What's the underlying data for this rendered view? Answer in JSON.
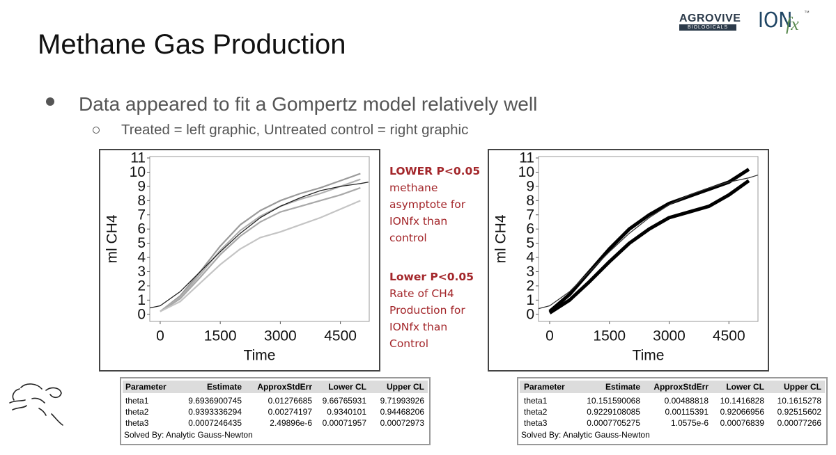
{
  "header": {
    "title": "Methane Gas Production",
    "logos": {
      "agrovive": "AGROVIVE",
      "agrovive_sub": "BIOLOGICALS",
      "ion": "ION",
      "fx": "fx",
      "tm": "™"
    }
  },
  "bullets": [
    {
      "text": "Data appeared to fit a Gompertz model relatively well",
      "sub": [
        "Treated = left graphic, Untreated control = right graphic"
      ]
    }
  ],
  "charts": [
    {
      "type": "line",
      "x_label": "Time",
      "y_label": "ml CH4",
      "xlim": [
        -260,
        5220
      ],
      "ylim": [
        -0.5,
        11.1
      ],
      "xticks": [
        0,
        1500,
        3000,
        4500
      ],
      "yticks": [
        0,
        1,
        2,
        3,
        4,
        5,
        6,
        7,
        8,
        9,
        10,
        11
      ],
      "x": [
        0,
        500,
        1000,
        1500,
        2000,
        2500,
        3000,
        3500,
        4000,
        4500,
        5000
      ],
      "series": [
        {
          "color": "#9a9a9a",
          "values": [
            0.2,
            1.3,
            3.0,
            4.8,
            6.3,
            7.3,
            8.0,
            8.5,
            8.9,
            9.4,
            9.9
          ]
        },
        {
          "color": "#b0b0b0",
          "values": [
            0.2,
            1.2,
            2.8,
            4.5,
            5.9,
            6.9,
            7.6,
            8.1,
            8.5,
            9.0,
            9.5
          ]
        },
        {
          "color": "#a8a8a8",
          "values": [
            0.2,
            1.1,
            2.6,
            4.2,
            5.5,
            6.5,
            7.2,
            7.6,
            8.0,
            8.4,
            8.9
          ]
        },
        {
          "color": "#c4c4c4",
          "values": [
            0.2,
            0.9,
            2.2,
            3.5,
            4.6,
            5.4,
            5.8,
            6.3,
            6.8,
            7.4,
            8.0
          ]
        }
      ],
      "fit": {
        "color": "#222222",
        "x": [
          -260,
          0,
          500,
          1000,
          1500,
          2000,
          2500,
          3000,
          3500,
          4000,
          4500,
          5000,
          5200
        ],
        "values": [
          0.45,
          0.6,
          1.6,
          3.0,
          4.4,
          5.7,
          6.8,
          7.6,
          8.2,
          8.7,
          9.0,
          9.2,
          9.3
        ]
      }
    },
    {
      "type": "band",
      "x_label": "Time",
      "y_label": "ml CH4",
      "xlim": [
        -280,
        5230
      ],
      "ylim": [
        -0.5,
        11.1
      ],
      "xticks": [
        0,
        1500,
        3000,
        4500
      ],
      "yticks": [
        0,
        1,
        2,
        3,
        4,
        5,
        6,
        7,
        8,
        9,
        10,
        11
      ],
      "x": [
        0,
        500,
        1000,
        1500,
        2000,
        2500,
        3000,
        3500,
        4000,
        4500,
        5000
      ],
      "series": [
        {
          "color": "#000000",
          "values": [
            0.2,
            1.4,
            3.0,
            4.6,
            6.0,
            7.0,
            7.8,
            8.3,
            8.8,
            9.3,
            10.2
          ]
        },
        {
          "color": "#000000",
          "values": [
            0.1,
            1.0,
            2.3,
            3.7,
            5.0,
            6.0,
            6.8,
            7.2,
            7.6,
            8.4,
            9.4
          ]
        }
      ],
      "fit": {
        "color": "#333333",
        "x": [
          -280,
          0,
          500,
          1000,
          1500,
          2000,
          2500,
          3000,
          3500,
          4000,
          4500,
          5000,
          5230
        ],
        "values": [
          0.4,
          0.6,
          1.6,
          3.0,
          4.4,
          5.7,
          6.8,
          7.7,
          8.4,
          8.9,
          9.3,
          9.6,
          9.8
        ]
      }
    }
  ],
  "annotations": [
    {
      "heading": "LOWER P<0.05",
      "lines": [
        "methane",
        "asymptote for",
        "IONfx than",
        "control"
      ]
    },
    {
      "heading": "Lower P<0.05",
      "lines": [
        "Rate of CH4",
        "Production for",
        "IONfx than",
        "Control"
      ]
    }
  ],
  "tables": [
    {
      "columns": [
        "Parameter",
        "Estimate",
        "ApproxStdErr",
        "Lower CL",
        "Upper CL"
      ],
      "rows": [
        [
          "theta1",
          "9.6936900745",
          "0.01276685",
          "9.66765931",
          "9.71993926"
        ],
        [
          "theta2",
          "0.9393336294",
          "0.00274197",
          "0.9340101",
          "0.94468206"
        ],
        [
          "theta3",
          "0.0007246435",
          "2.49896e-6",
          "0.00071957",
          "0.00072973"
        ]
      ],
      "footer": "Solved By: Analytic Gauss-Newton"
    },
    {
      "columns": [
        "Parameter",
        "Estimate",
        "ApproxStdErr",
        "Lower CL",
        "Upper CL"
      ],
      "rows": [
        [
          "theta1",
          "10.151590068",
          "0.00488818",
          "10.1416828",
          "10.1615278"
        ],
        [
          "theta2",
          "0.9229108085",
          "0.00115391",
          "0.92066956",
          "0.92515602"
        ],
        [
          "theta3",
          "0.0007705275",
          "1.0575e-6",
          "0.00076839",
          "0.00077266"
        ]
      ],
      "footer": "Solved By: Analytic Gauss-Newton"
    }
  ]
}
